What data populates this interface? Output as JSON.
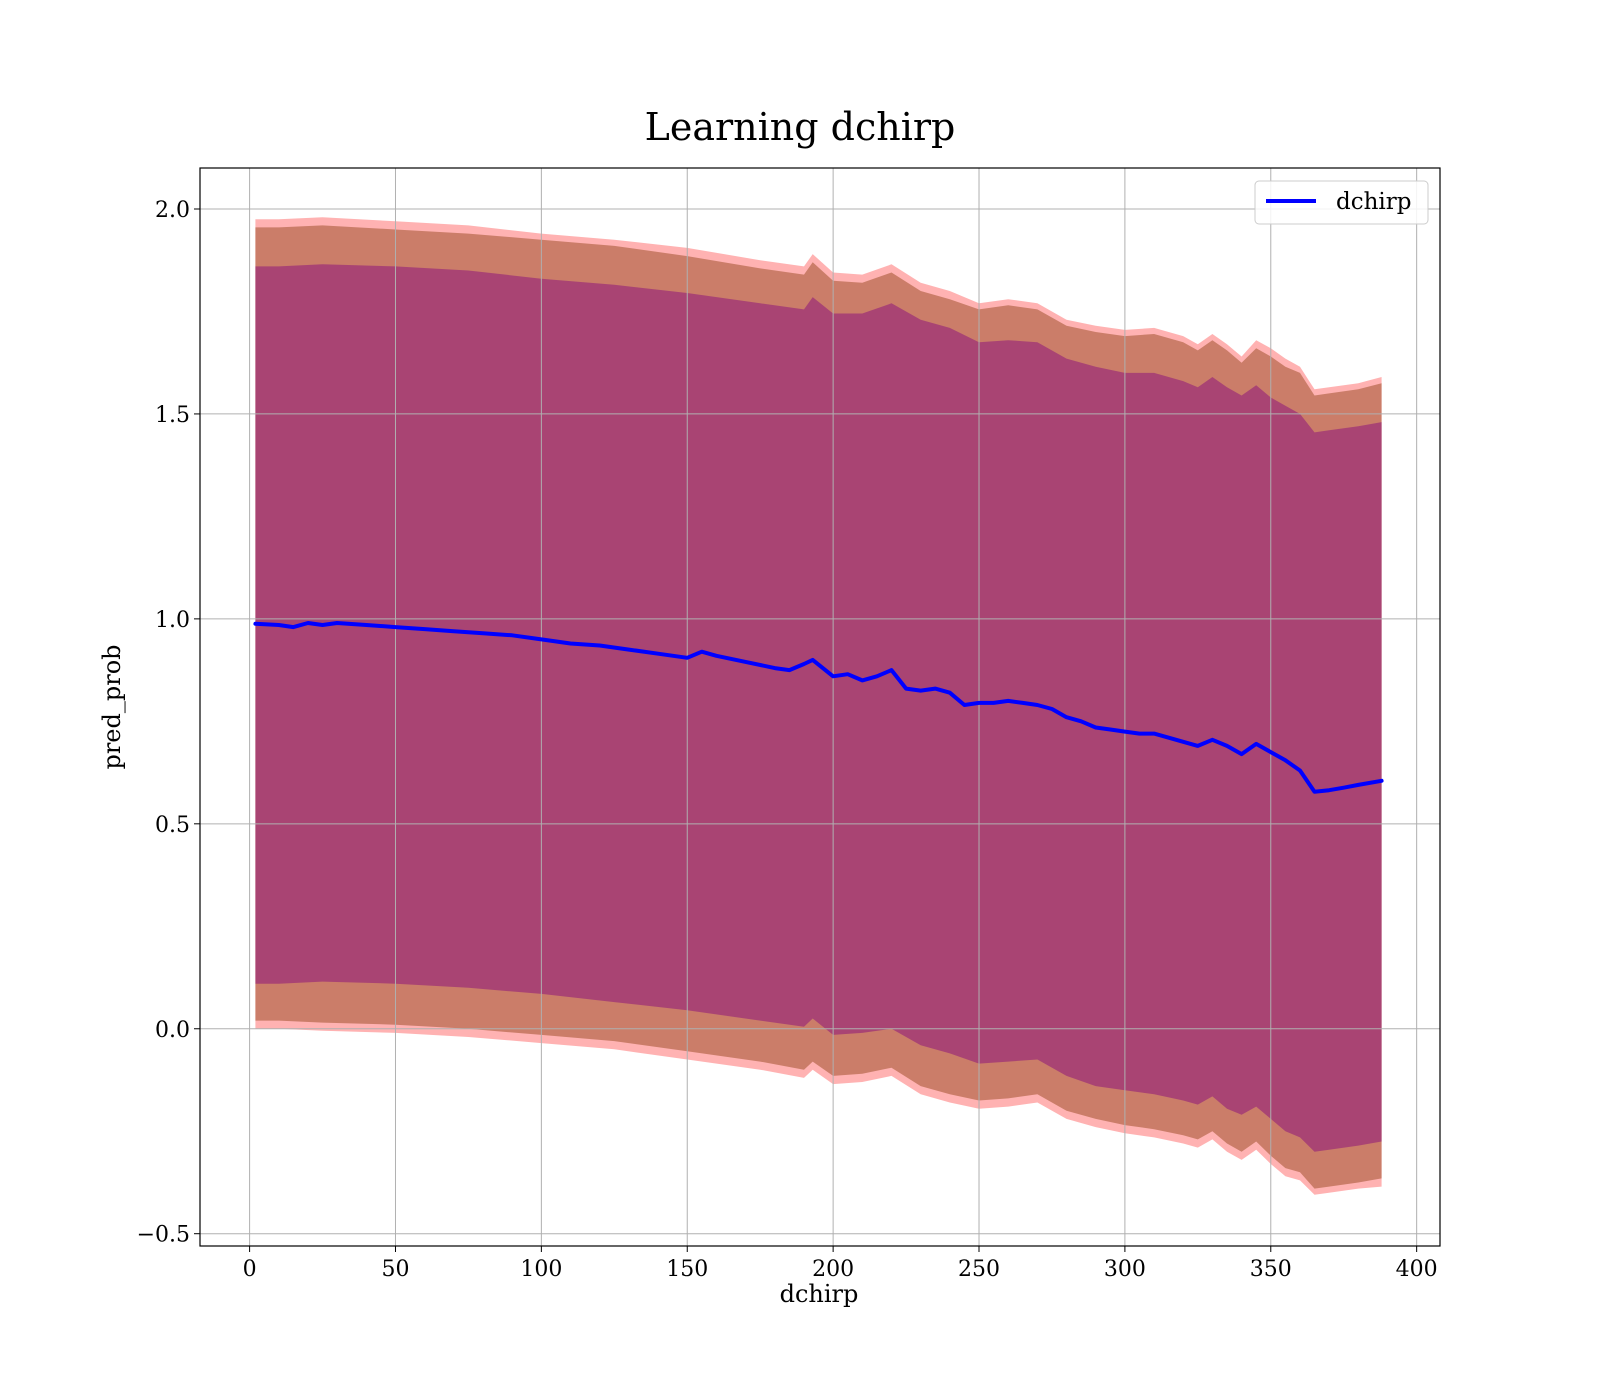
{
  "chart_data": {
    "type": "line",
    "title": "Learning dchirp",
    "xlabel": "dchirp",
    "ylabel": "pred_prob",
    "xlim": [
      -17,
      408
    ],
    "ylim": [
      -0.53,
      2.1
    ],
    "xticks": [
      0,
      50,
      100,
      150,
      200,
      250,
      300,
      350,
      400
    ],
    "yticks": [
      -0.5,
      0.0,
      0.5,
      1.0,
      1.5,
      2.0
    ],
    "xtick_labels": [
      "0",
      "50",
      "100",
      "150",
      "200",
      "250",
      "300",
      "350",
      "400"
    ],
    "ytick_labels": [
      "−0.5",
      "0.0",
      "0.5",
      "1.0",
      "1.5",
      "2.0"
    ],
    "grid": true,
    "legend_position": "top-right",
    "colors": {
      "line": "#0000ff",
      "band_outer": "#ff0000",
      "band_middle": "#a0522d",
      "band_inner": "#800080",
      "grid": "#b0b0b0"
    },
    "series": [
      {
        "name": "dchirp",
        "x": [
          2,
          10,
          15,
          20,
          25,
          30,
          40,
          50,
          60,
          70,
          80,
          90,
          100,
          110,
          120,
          130,
          140,
          150,
          155,
          160,
          170,
          180,
          185,
          190,
          193,
          200,
          205,
          210,
          215,
          220,
          225,
          230,
          235,
          240,
          245,
          250,
          255,
          260,
          265,
          270,
          275,
          280,
          285,
          290,
          295,
          300,
          305,
          310,
          315,
          320,
          325,
          330,
          335,
          340,
          345,
          350,
          355,
          360,
          365,
          370,
          375,
          380,
          388
        ],
        "y": [
          0.988,
          0.985,
          0.98,
          0.99,
          0.985,
          0.99,
          0.985,
          0.98,
          0.975,
          0.97,
          0.965,
          0.96,
          0.95,
          0.94,
          0.935,
          0.925,
          0.915,
          0.905,
          0.92,
          0.91,
          0.895,
          0.88,
          0.875,
          0.89,
          0.9,
          0.86,
          0.865,
          0.85,
          0.86,
          0.875,
          0.83,
          0.825,
          0.83,
          0.82,
          0.79,
          0.795,
          0.795,
          0.8,
          0.795,
          0.79,
          0.78,
          0.76,
          0.75,
          0.735,
          0.73,
          0.725,
          0.72,
          0.72,
          0.71,
          0.7,
          0.69,
          0.705,
          0.69,
          0.67,
          0.695,
          0.675,
          0.655,
          0.63,
          0.578,
          0.582,
          0.588,
          0.595,
          0.605
        ]
      }
    ],
    "bands": [
      {
        "label": "outer",
        "x": [
          2,
          10,
          25,
          50,
          75,
          100,
          125,
          150,
          175,
          190,
          193,
          200,
          210,
          220,
          230,
          240,
          250,
          260,
          270,
          280,
          290,
          300,
          310,
          320,
          325,
          330,
          335,
          340,
          345,
          350,
          355,
          360,
          365,
          370,
          380,
          388
        ],
        "upper": [
          1.975,
          1.975,
          1.98,
          1.97,
          1.96,
          1.94,
          1.925,
          1.905,
          1.875,
          1.86,
          1.89,
          1.845,
          1.84,
          1.865,
          1.82,
          1.8,
          1.77,
          1.78,
          1.77,
          1.73,
          1.715,
          1.705,
          1.71,
          1.69,
          1.67,
          1.695,
          1.67,
          1.64,
          1.68,
          1.66,
          1.635,
          1.615,
          1.56,
          1.565,
          1.575,
          1.59
        ],
        "lower": [
          0.0,
          0.0,
          -0.005,
          -0.01,
          -0.02,
          -0.035,
          -0.05,
          -0.075,
          -0.1,
          -0.12,
          -0.1,
          -0.135,
          -0.13,
          -0.115,
          -0.16,
          -0.18,
          -0.195,
          -0.19,
          -0.18,
          -0.22,
          -0.24,
          -0.255,
          -0.265,
          -0.28,
          -0.29,
          -0.27,
          -0.3,
          -0.32,
          -0.295,
          -0.33,
          -0.36,
          -0.37,
          -0.405,
          -0.4,
          -0.39,
          -0.385
        ]
      },
      {
        "label": "middle",
        "x": [
          2,
          10,
          25,
          50,
          75,
          100,
          125,
          150,
          175,
          190,
          193,
          200,
          210,
          220,
          230,
          240,
          250,
          260,
          270,
          280,
          290,
          300,
          310,
          320,
          325,
          330,
          335,
          340,
          345,
          350,
          355,
          360,
          365,
          370,
          380,
          388
        ],
        "upper": [
          1.955,
          1.955,
          1.96,
          1.95,
          1.94,
          1.925,
          1.91,
          1.885,
          1.855,
          1.84,
          1.87,
          1.825,
          1.82,
          1.845,
          1.8,
          1.78,
          1.755,
          1.765,
          1.755,
          1.715,
          1.7,
          1.69,
          1.695,
          1.675,
          1.655,
          1.68,
          1.655,
          1.625,
          1.66,
          1.64,
          1.615,
          1.6,
          1.545,
          1.55,
          1.56,
          1.575
        ],
        "lower": [
          0.02,
          0.02,
          0.015,
          0.01,
          0.0,
          -0.015,
          -0.03,
          -0.055,
          -0.08,
          -0.1,
          -0.08,
          -0.115,
          -0.11,
          -0.095,
          -0.14,
          -0.16,
          -0.175,
          -0.17,
          -0.16,
          -0.2,
          -0.22,
          -0.235,
          -0.245,
          -0.26,
          -0.27,
          -0.25,
          -0.28,
          -0.3,
          -0.275,
          -0.31,
          -0.34,
          -0.35,
          -0.39,
          -0.385,
          -0.375,
          -0.365
        ]
      },
      {
        "label": "inner",
        "x": [
          2,
          10,
          25,
          50,
          75,
          100,
          125,
          150,
          175,
          190,
          193,
          200,
          210,
          220,
          230,
          240,
          250,
          260,
          270,
          280,
          290,
          300,
          310,
          320,
          325,
          330,
          335,
          340,
          345,
          350,
          355,
          360,
          365,
          370,
          380,
          388
        ],
        "upper": [
          1.86,
          1.86,
          1.865,
          1.86,
          1.85,
          1.83,
          1.815,
          1.795,
          1.77,
          1.755,
          1.785,
          1.745,
          1.745,
          1.77,
          1.73,
          1.71,
          1.675,
          1.68,
          1.675,
          1.635,
          1.615,
          1.6,
          1.6,
          1.58,
          1.565,
          1.59,
          1.565,
          1.545,
          1.57,
          1.54,
          1.52,
          1.5,
          1.455,
          1.46,
          1.47,
          1.48
        ],
        "lower": [
          0.11,
          0.11,
          0.115,
          0.11,
          0.1,
          0.085,
          0.065,
          0.045,
          0.02,
          0.005,
          0.025,
          -0.015,
          -0.01,
          0.0,
          -0.04,
          -0.06,
          -0.085,
          -0.08,
          -0.075,
          -0.115,
          -0.14,
          -0.15,
          -0.16,
          -0.175,
          -0.185,
          -0.165,
          -0.195,
          -0.21,
          -0.19,
          -0.22,
          -0.25,
          -0.265,
          -0.3,
          -0.295,
          -0.285,
          -0.275
        ]
      }
    ]
  }
}
